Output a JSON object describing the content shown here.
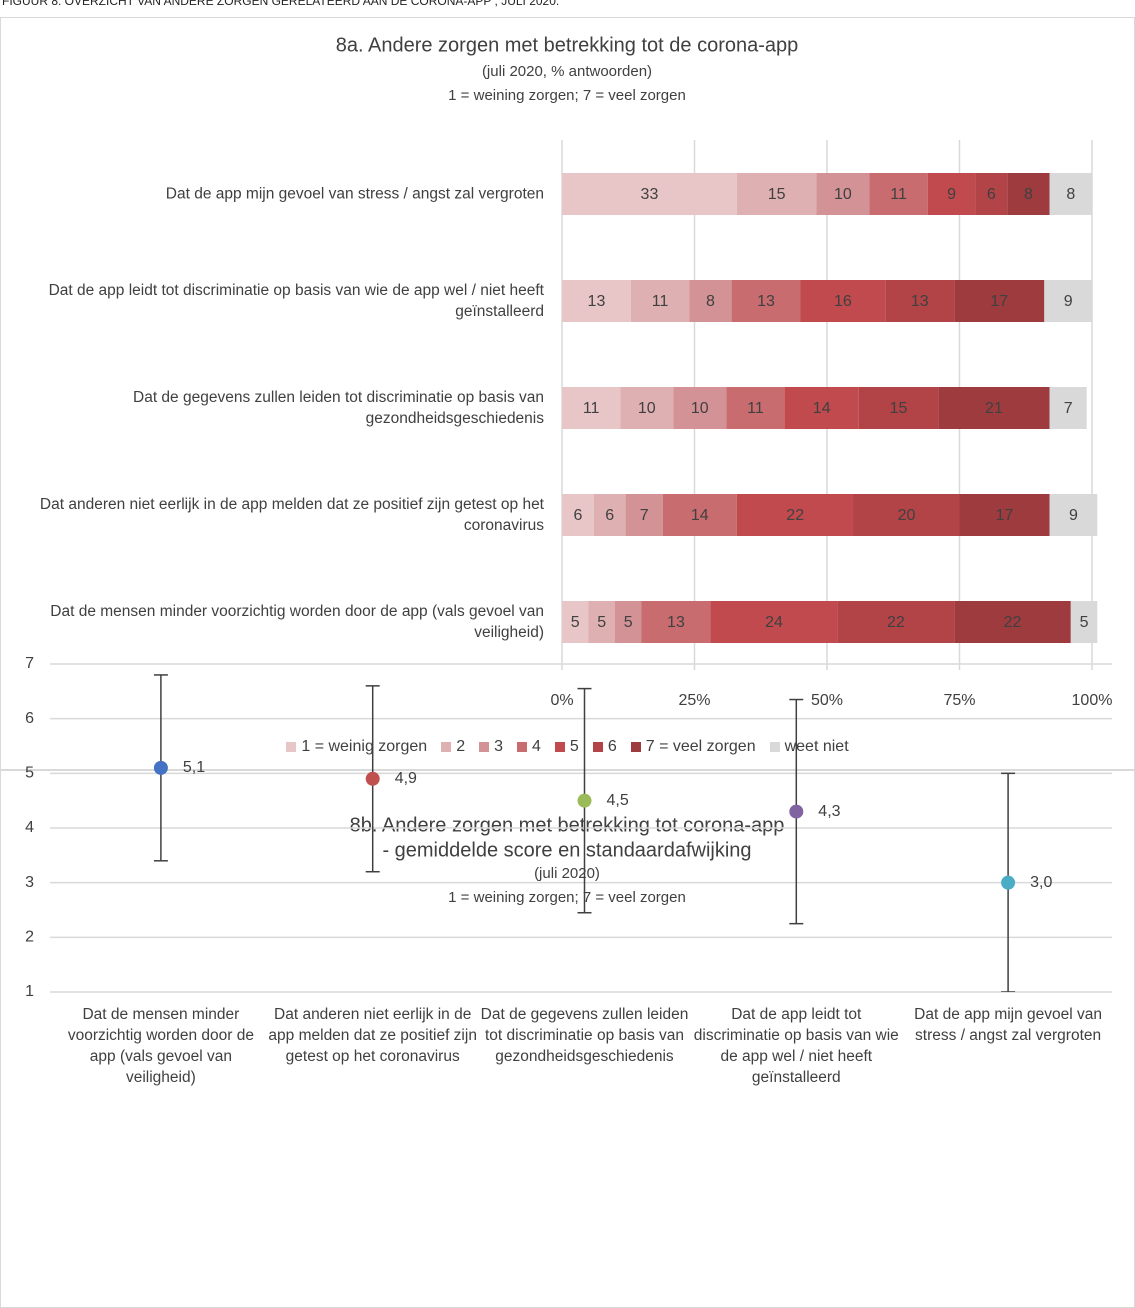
{
  "figure_title": "FIGUUR 8: OVERZICHT VAN ANDERE ZORGEN GERELATEERD AAN DE CORONA-APP , JULI 2020.",
  "chart_data": [
    {
      "type": "bar",
      "orientation": "horizontal",
      "stacked": true,
      "title": "8a. Andere zorgen met betrekking tot de corona-app",
      "subtitle": "(juli 2020, % antwoorden)",
      "note": "1 = weining zorgen; 7 = veel zorgen",
      "categories": [
        "Dat de app mijn gevoel van stress / angst zal vergroten",
        "Dat de app leidt tot discriminatie op basis van wie de app wel / niet heeft geïnstalleerd",
        "Dat de gegevens zullen leiden tot discriminatie op basis van gezondheidsgeschiedenis",
        "Dat anderen niet eerlijk in de app melden dat ze positief zijn getest op het coronavirus",
        "Dat de mensen minder voorzichtig worden door de app (vals gevoel van veiligheid)"
      ],
      "series": [
        {
          "name": "1 = weinig zorgen",
          "color": "#e8c6c8",
          "values": [
            33,
            13,
            11,
            6,
            5
          ]
        },
        {
          "name": "2",
          "color": "#dfb0b2",
          "values": [
            15,
            11,
            10,
            6,
            5
          ]
        },
        {
          "name": "3",
          "color": "#d39295",
          "values": [
            10,
            8,
            10,
            7,
            5
          ]
        },
        {
          "name": "4",
          "color": "#c96c6f",
          "values": [
            11,
            13,
            11,
            14,
            13
          ]
        },
        {
          "name": "5",
          "color": "#c04a4d",
          "values": [
            9,
            16,
            14,
            22,
            24
          ]
        },
        {
          "name": "6",
          "color": "#b24346",
          "values": [
            6,
            13,
            15,
            20,
            22
          ]
        },
        {
          "name": "7 = veel zorgen",
          "color": "#9d3b3e",
          "values": [
            8,
            17,
            21,
            17,
            22
          ]
        },
        {
          "name": "weet niet",
          "color": "#d9d9d9",
          "values": [
            8,
            9,
            7,
            9,
            5
          ]
        }
      ],
      "xlim": [
        0,
        100
      ],
      "xticks": [
        {
          "value": 0,
          "label": "0%"
        },
        {
          "value": 25,
          "label": "25%"
        },
        {
          "value": 50,
          "label": "50%"
        },
        {
          "value": 75,
          "label": "75%"
        },
        {
          "value": 100,
          "label": "100%"
        }
      ],
      "grid": true,
      "legend": "bottom"
    },
    {
      "type": "errorbar",
      "title": "8b. Andere zorgen met betrekking tot corona-app",
      "subtitle": "- gemiddelde score en standaardafwijking",
      "subtitle2": "(juli 2020)",
      "note": "1 = weining zorgen; 7 = veel zorgen",
      "categories": [
        "Dat de mensen minder voorzichtig worden door de app (vals gevoel van veiligheid)",
        "Dat anderen niet eerlijk in de app melden dat ze positief zijn getest op het coronavirus",
        "Dat de gegevens zullen leiden tot discriminatie op basis van gezondheidsgeschiedenis",
        "Dat de app leidt tot discriminatie op basis van wie de app wel / niet heeft geïnstalleerd",
        "Dat de app mijn gevoel van stress / angst zal vergroten"
      ],
      "values": [
        5.1,
        4.9,
        4.5,
        4.3,
        3.0
      ],
      "value_labels": [
        "5,1",
        "4,9",
        "4,5",
        "4,3",
        "3,0"
      ],
      "errors": [
        1.7,
        1.7,
        2.05,
        2.05,
        2.0
      ],
      "colors": [
        "#4472c4",
        "#c0504d",
        "#9bbb59",
        "#8064a2",
        "#4bacc6"
      ],
      "error_color": "#404040",
      "ylim": [
        1,
        7
      ],
      "yticks": [
        1,
        2,
        3,
        4,
        5,
        6,
        7
      ],
      "grid": true
    }
  ]
}
